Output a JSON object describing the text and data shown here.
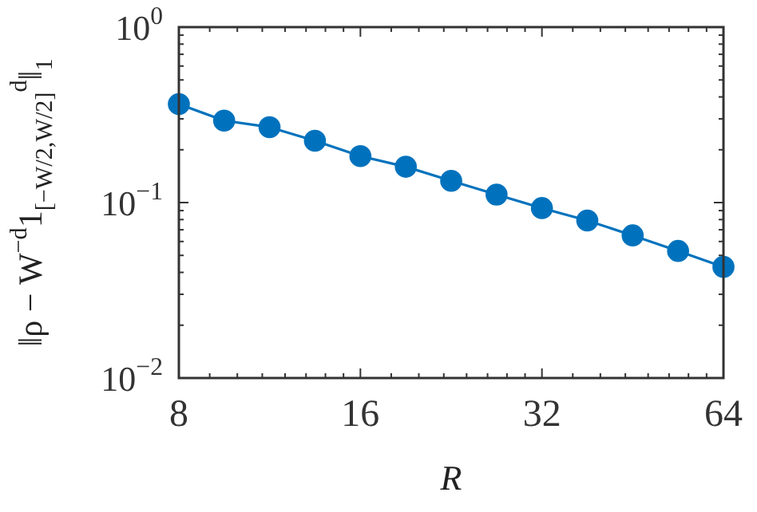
{
  "chart_data": {
    "type": "line",
    "xlabel": "R",
    "ylabel": "‖ρ − W$^{−d}$1$_{[−W/2,W/2]}$$^{d}$‖$_{1}$",
    "log": "xy",
    "marker": "circle",
    "line_style": "solid",
    "grid": false,
    "x": [
      8,
      9.51,
      11.31,
      13.45,
      16,
      19.03,
      22.63,
      26.91,
      32,
      38.05,
      45.25,
      53.82,
      64
    ],
    "series": [
      {
        "color": "#0072bd",
        "values": [
          0.364,
          0.293,
          0.269,
          0.225,
          0.184,
          0.16,
          0.133,
          0.111,
          0.093,
          0.079,
          0.065,
          0.053,
          0.043
        ]
      }
    ],
    "xlim": [
      8,
      64
    ],
    "ylim": [
      0.01,
      1
    ],
    "xticks": [
      8,
      {
        "value": 9,
        "label": null
      },
      {
        "value": 10,
        "label": null
      },
      {
        "value": 11,
        "label": null
      },
      {
        "value": 12,
        "label": null
      },
      {
        "value": 13,
        "label": null
      },
      {
        "value": 14,
        "label": null
      },
      {
        "value": 15,
        "label": null
      },
      16,
      {
        "value": 18,
        "label": null
      },
      {
        "value": 20,
        "label": null
      },
      {
        "value": 22,
        "label": null
      },
      {
        "value": 24,
        "label": null
      },
      {
        "value": 26,
        "label": null
      },
      {
        "value": 28,
        "label": null
      },
      {
        "value": 30,
        "label": null
      },
      32,
      {
        "value": 36,
        "label": null
      },
      {
        "value": 40,
        "label": null
      },
      {
        "value": 44,
        "label": null
      },
      {
        "value": 48,
        "label": null
      },
      {
        "value": 52,
        "label": null
      },
      {
        "value": 56,
        "label": null
      },
      {
        "value": 60,
        "label": null
      },
      64
    ],
    "yticks": [
      {
        "value": 0.01,
        "label": "10$^{−2}$"
      },
      {
        "value": 0.02,
        "label": null
      },
      {
        "value": 0.03,
        "label": null
      },
      {
        "value": 0.04,
        "label": null
      },
      {
        "value": 0.05,
        "label": null
      },
      {
        "value": 0.06,
        "label": null
      },
      {
        "value": 0.07,
        "label": null
      },
      {
        "value": 0.08,
        "label": null
      },
      {
        "value": 0.09,
        "label": null
      },
      {
        "value": 0.1,
        "label": "10$^{−1}$"
      },
      {
        "value": 0.2,
        "label": null
      },
      {
        "value": 0.3,
        "label": null
      },
      {
        "value": 0.4,
        "label": null
      },
      {
        "value": 0.5,
        "label": null
      },
      {
        "value": 0.6,
        "label": null
      },
      {
        "value": 0.7,
        "label": null
      },
      {
        "value": 0.8,
        "label": null
      },
      {
        "value": 0.9,
        "label": null
      },
      {
        "value": 1,
        "label": "10$^{0}$"
      }
    ]
  }
}
